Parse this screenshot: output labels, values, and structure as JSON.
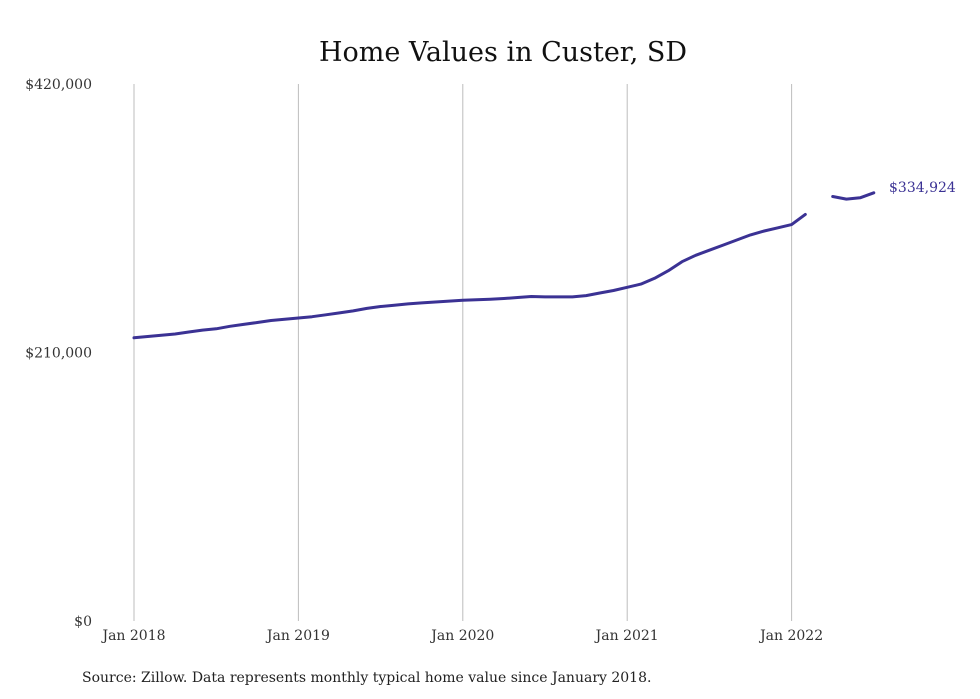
{
  "chart_data": {
    "type": "line",
    "title": "Home Values in Custer, SD",
    "xlabel": "",
    "ylabel": "",
    "ylim": [
      0,
      420000
    ],
    "y_ticks": [
      "$420,000",
      "$210,000",
      "$0"
    ],
    "y_tick_values": [
      420000,
      210000,
      0
    ],
    "x_ticks": [
      "Jan 2018",
      "Jan 2019",
      "Jan 2020",
      "Jan 2021",
      "Jan 2022"
    ],
    "grid": "vertical",
    "line_color": "#3b3294",
    "end_label": "$334,924",
    "source": "Source: Zillow. Data represents monthly typical home value since January 2018.",
    "x": [
      "2018-01",
      "2018-02",
      "2018-03",
      "2018-04",
      "2018-05",
      "2018-06",
      "2018-07",
      "2018-08",
      "2018-09",
      "2018-10",
      "2018-11",
      "2018-12",
      "2019-01",
      "2019-02",
      "2019-03",
      "2019-04",
      "2019-05",
      "2019-06",
      "2019-07",
      "2019-08",
      "2019-09",
      "2019-10",
      "2019-11",
      "2019-12",
      "2020-01",
      "2020-02",
      "2020-03",
      "2020-04",
      "2020-05",
      "2020-06",
      "2020-07",
      "2020-08",
      "2020-09",
      "2020-10",
      "2020-11",
      "2020-12",
      "2021-01",
      "2021-02",
      "2021-03",
      "2021-04",
      "2021-05",
      "2021-06",
      "2021-07",
      "2021-08",
      "2021-09",
      "2021-10",
      "2021-11",
      "2021-12",
      "2022-01",
      "2022-02",
      "2022-03",
      "2022-04",
      "2022-05",
      "2022-06",
      "2022-07"
    ],
    "series": [
      {
        "values": [
          221500,
          222500,
          223500,
          224500,
          226000,
          227500,
          228500,
          230500,
          232000,
          233500,
          235000,
          236000,
          237000,
          238000,
          239500,
          241000,
          242500,
          244500,
          246000,
          247000,
          248000,
          248800,
          249500,
          250200,
          250800,
          251200,
          251600,
          252200,
          253000,
          253800,
          253500,
          253500,
          253500,
          254500,
          256500,
          258500,
          261000,
          263500,
          268000,
          274000,
          281000,
          286000,
          290000,
          294000,
          298000,
          302000,
          305000,
          307500,
          310000,
          318000,
          null,
          332000,
          330000,
          331000,
          334924
        ]
      }
    ]
  }
}
